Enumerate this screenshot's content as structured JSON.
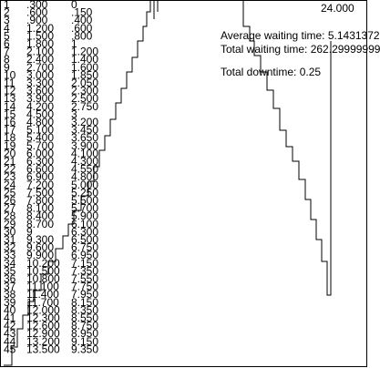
{
  "stats": {
    "average_waiting": "Average waiting time: 5.1431372",
    "total_waiting": "Total waiting time: 262.29999999",
    "total_down": "Total downtime: 0.25"
  },
  "end_time": "24.000",
  "rows": [
    {
      "n": "1",
      "a": ".300",
      "b": "0"
    },
    {
      "n": "2",
      "a": ".600",
      "b": ".150"
    },
    {
      "n": "3",
      "a": ".900",
      "b": ".400"
    },
    {
      "n": "4",
      "a": "1.200",
      "b": ".600"
    },
    {
      "n": "5",
      "a": "1.500",
      "b": ".800"
    },
    {
      "n": "6",
      "a": "1.800",
      "b": "1"
    },
    {
      "n": "7",
      "a": "2.100",
      "b": "1.200"
    },
    {
      "n": "8",
      "a": "2.400",
      "b": "1.400"
    },
    {
      "n": "9",
      "a": "2.700",
      "b": "1.600"
    },
    {
      "n": "10",
      "a": "3.000",
      "b": "1.850"
    },
    {
      "n": "11",
      "a": "3.300",
      "b": "2.050"
    },
    {
      "n": "12",
      "a": "3.600",
      "b": "2.300"
    },
    {
      "n": "13",
      "a": "3.900",
      "b": "2.500"
    },
    {
      "n": "14",
      "a": "4.200",
      "b": "2.750"
    },
    {
      "n": "15",
      "a": "4.500",
      "b": "3"
    },
    {
      "n": "16",
      "a": "4.800",
      "b": "3.200"
    },
    {
      "n": "17",
      "a": "5.100",
      "b": "3.450"
    },
    {
      "n": "18",
      "a": "5.400",
      "b": "3.650"
    },
    {
      "n": "19",
      "a": "5.700",
      "b": "3.900"
    },
    {
      "n": "20",
      "a": "6.000",
      "b": "4.100"
    },
    {
      "n": "21",
      "a": "6.300",
      "b": "4.300"
    },
    {
      "n": "22",
      "a": "6.600",
      "b": "4.550"
    },
    {
      "n": "23",
      "a": "6.900",
      "b": "4.800"
    },
    {
      "n": "24",
      "a": "7.200",
      "b": "5.000"
    },
    {
      "n": "25",
      "a": "7.500",
      "b": "5.250"
    },
    {
      "n": "26",
      "a": "7.800",
      "b": "5.500"
    },
    {
      "n": "27",
      "a": "8.100",
      "b": "5.700"
    },
    {
      "n": "28",
      "a": "8.400",
      "b": "5.900"
    },
    {
      "n": "29",
      "a": "8.700",
      "b": "6.100"
    },
    {
      "n": "30",
      "a": "9",
      "b": "6.300"
    },
    {
      "n": "31",
      "a": "9.300",
      "b": "6.500"
    },
    {
      "n": "32",
      "a": "9.600",
      "b": "6.750"
    },
    {
      "n": "33",
      "a": "9.900",
      "b": "6.950"
    },
    {
      "n": "34",
      "a": "10.200",
      "b": "7.150"
    },
    {
      "n": "35",
      "a": "10.500",
      "b": "7.350"
    },
    {
      "n": "36",
      "a": "10.800",
      "b": "7.550"
    },
    {
      "n": "37",
      "a": "11.100",
      "b": "7.750"
    },
    {
      "n": "38",
      "a": "11.400",
      "b": "7.950"
    },
    {
      "n": "39",
      "a": "11.700",
      "b": "8.150"
    },
    {
      "n": "40",
      "a": "12.000",
      "b": "8.350"
    },
    {
      "n": "41",
      "a": "12.300",
      "b": "8.550"
    },
    {
      "n": "42",
      "a": "12.600",
      "b": "8.750"
    },
    {
      "n": "43",
      "a": "12.900",
      "b": "8.950"
    },
    {
      "n": "44",
      "a": "13.200",
      "b": "9.150"
    },
    {
      "n": "45",
      "a": "13.500",
      "b": "9.350"
    }
  ]
}
